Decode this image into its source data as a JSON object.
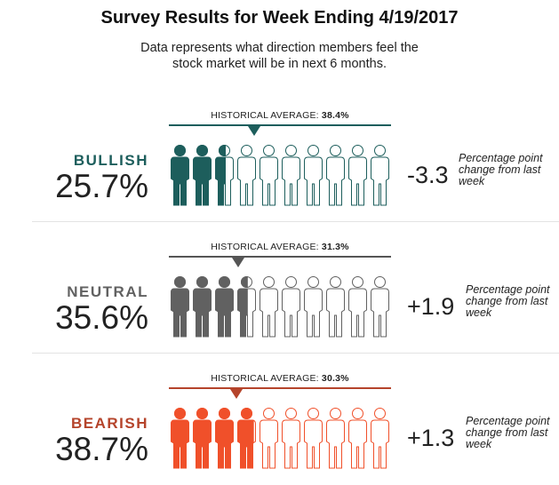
{
  "title": "Survey Results for Week Ending 4/19/2017",
  "subtitle": "Data represents what direction members feel the stock market will be in next 6 months.",
  "chart_data": {
    "type": "pictograph",
    "icons_per_row": 10,
    "sections": [
      {
        "key": "bullish",
        "label": "BULLISH",
        "value": 25.7,
        "value_text": "25.7%",
        "historical_average": 38.4,
        "historical_text": "HISTORICAL AVERAGE:",
        "historical_value_text": "38.4%",
        "change_text": "-3.3",
        "change_note": "Percentage point change from last week",
        "color": "#1d5e5c",
        "line_color": "#1d5e5c"
      },
      {
        "key": "neutral",
        "label": "NEUTRAL",
        "value": 35.6,
        "value_text": "35.6%",
        "historical_average": 31.3,
        "historical_text": "HISTORICAL AVERAGE:",
        "historical_value_text": "31.3%",
        "change_text": "+1.9",
        "change_note": "Percentage point change from last week",
        "color": "#616161",
        "line_color": "#555555"
      },
      {
        "key": "bearish",
        "label": "BEARISH",
        "value": 38.7,
        "value_text": "38.7%",
        "historical_average": 30.3,
        "historical_text": "HISTORICAL AVERAGE:",
        "historical_value_text": "30.3%",
        "change_text": "+1.3",
        "change_note": "Percentage point change from last week",
        "color": "#f0502a",
        "label_color": "#b5442b",
        "line_color": "#b5442b"
      }
    ]
  }
}
